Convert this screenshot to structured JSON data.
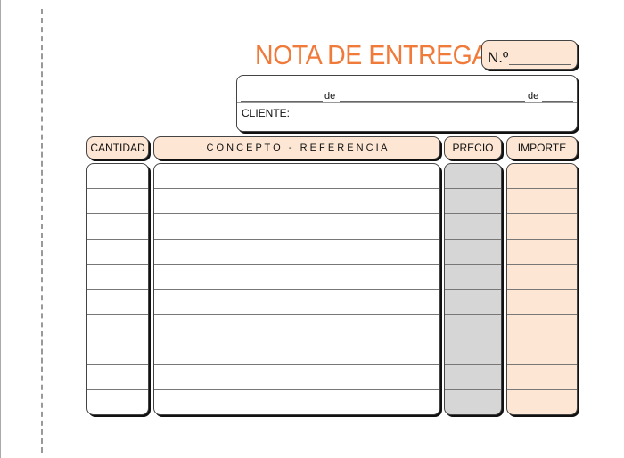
{
  "title": "NOTA DE ENTREGA",
  "number_label": "N.º",
  "date_line": {
    "sep1": "de",
    "sep2": "de"
  },
  "client_label": "CLIENTE:",
  "columns": [
    {
      "key": "cantidad",
      "label": "CANTIDAD"
    },
    {
      "key": "concepto",
      "label": "C O N C E P T O   -   R E F E R E N C I A"
    },
    {
      "key": "precio",
      "label": "PRECIO"
    },
    {
      "key": "importe",
      "label": "IMPORTE"
    }
  ],
  "row_count": 10,
  "colors": {
    "accent": "#f07a3a",
    "header_fill": "#fde6d4",
    "price_fill": "#d6d6d6"
  }
}
